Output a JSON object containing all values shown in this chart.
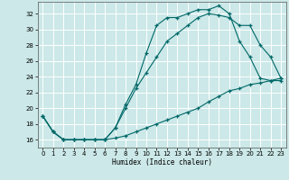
{
  "xlabel": "Humidex (Indice chaleur)",
  "bg_color": "#cce8e8",
  "grid_color": "#ffffff",
  "line_color": "#006868",
  "xlim": [
    -0.5,
    23.5
  ],
  "ylim": [
    15,
    33.5
  ],
  "xticks": [
    0,
    1,
    2,
    3,
    4,
    5,
    6,
    7,
    8,
    9,
    10,
    11,
    12,
    13,
    14,
    15,
    16,
    17,
    18,
    19,
    20,
    21,
    22,
    23
  ],
  "yticks": [
    16,
    18,
    20,
    22,
    24,
    26,
    28,
    30,
    32
  ],
  "line1_x": [
    0,
    1,
    2,
    3,
    4,
    5,
    6,
    7,
    8,
    9,
    10,
    11,
    12,
    13,
    14,
    15,
    16,
    17,
    18,
    19,
    20,
    21,
    22,
    23
  ],
  "line1_y": [
    19,
    17,
    16,
    16,
    16,
    16,
    16,
    17.5,
    20.5,
    23,
    27,
    30.5,
    31.5,
    31.5,
    32.0,
    32.5,
    32.5,
    33.0,
    32.0,
    28.5,
    26.5,
    23.8,
    23.5,
    23.5
  ],
  "line2_x": [
    0,
    1,
    2,
    3,
    4,
    5,
    6,
    7,
    8,
    9,
    10,
    11,
    12,
    13,
    14,
    15,
    16,
    17,
    18,
    19,
    20,
    21,
    22,
    23
  ],
  "line2_y": [
    19,
    17,
    16,
    16,
    16,
    16,
    16,
    17.5,
    20.0,
    22.5,
    24.5,
    26.5,
    28.5,
    29.5,
    30.5,
    31.5,
    32.0,
    31.8,
    31.5,
    30.5,
    30.5,
    28.0,
    26.5,
    23.8
  ],
  "line3_x": [
    0,
    1,
    2,
    3,
    4,
    5,
    6,
    7,
    8,
    9,
    10,
    11,
    12,
    13,
    14,
    15,
    16,
    17,
    18,
    19,
    20,
    21,
    22,
    23
  ],
  "line3_y": [
    19,
    17,
    16,
    16,
    16,
    16,
    16,
    16.2,
    16.5,
    17.0,
    17.5,
    18.0,
    18.5,
    19.0,
    19.5,
    20.0,
    20.8,
    21.5,
    22.2,
    22.5,
    23.0,
    23.2,
    23.5,
    23.8
  ]
}
